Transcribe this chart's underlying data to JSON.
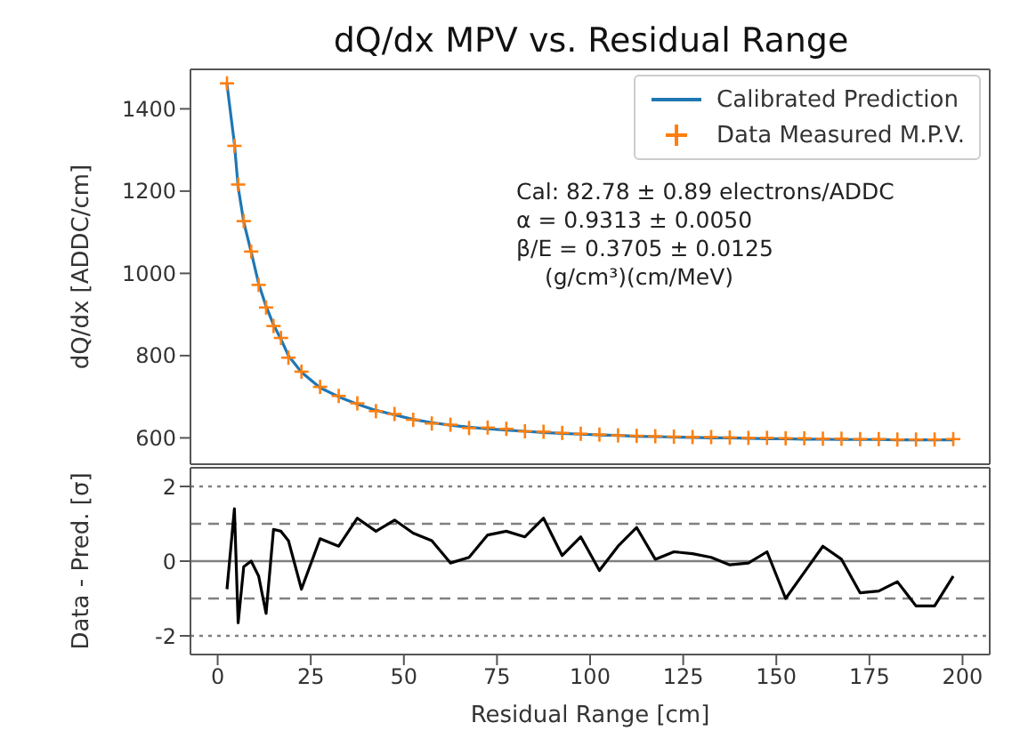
{
  "chart_data": [
    {
      "type": "line",
      "title": "dQ/dx MPV vs. Residual Range",
      "ylabel": "dQ/dx [ADDC/cm]",
      "legend": "top right",
      "tick_labels": "y",
      "grid": false,
      "annotations": [
        "Cal: 82.78 ± 0.89 electrons/ADDC",
        "α = 0.9313 ± 0.0050",
        "β/E = 0.3705 ± 0.0125",
        "(g/cm³)(cm/MeV)"
      ],
      "x": [
        2.5,
        4.5,
        5.5,
        7,
        9,
        11,
        13,
        15,
        17,
        19,
        22.5,
        27.5,
        32.5,
        37.5,
        42.5,
        47.5,
        52.5,
        57.5,
        62.5,
        67.5,
        72.5,
        77.5,
        82.5,
        87.5,
        92.5,
        97.5,
        102.5,
        107.5,
        112.5,
        117.5,
        122.5,
        127.5,
        132.5,
        137.5,
        142.5,
        147.5,
        152.5,
        157.5,
        162.5,
        167.5,
        172.5,
        177.5,
        182.5,
        187.5,
        192.5,
        197.5
      ],
      "xlim": [
        -7.3,
        207.3
      ],
      "ylim": [
        536,
        1496
      ],
      "yticks": [
        600,
        800,
        1000,
        1200,
        1400
      ],
      "series": [
        {
          "name": "Calibrated Prediction",
          "color": "#1f77b4",
          "values": [
            1460,
            1315,
            1210,
            1125,
            1052,
            975,
            920,
            875,
            840,
            800,
            760,
            722,
            700,
            682,
            667,
            656,
            645,
            637,
            631,
            626,
            622,
            619,
            616,
            613,
            611,
            609,
            607,
            606,
            604,
            603,
            602,
            601,
            600,
            600,
            599,
            598,
            598,
            597,
            597,
            596,
            596,
            596,
            595,
            595,
            595,
            595
          ]
        },
        {
          "name": "Data Measured M.P.V.",
          "type": "scatter",
          "marker": "cross",
          "color": "#ff7f0e",
          "values": [
            1462,
            1310,
            1216,
            1127,
            1053,
            972,
            917,
            872,
            843,
            795,
            761,
            724,
            702,
            684,
            665,
            658,
            644,
            635,
            632,
            624,
            625,
            622,
            616,
            615,
            612,
            610,
            608,
            606,
            605,
            604,
            603,
            602,
            602,
            601,
            600,
            600,
            599,
            599,
            598,
            598,
            597,
            597,
            596,
            596,
            596,
            597
          ]
        }
      ]
    },
    {
      "type": "line",
      "xlabel": "Residual Range [cm]",
      "ylabel": "Data - Pred. [σ]",
      "grid": false,
      "x": [
        2.5,
        4.5,
        5.5,
        7,
        9,
        11,
        13,
        15,
        17,
        19,
        22.5,
        27.5,
        32.5,
        37.5,
        42.5,
        47.5,
        52.5,
        57.5,
        62.5,
        67.5,
        72.5,
        77.5,
        82.5,
        87.5,
        92.5,
        97.5,
        102.5,
        107.5,
        112.5,
        117.5,
        122.5,
        127.5,
        132.5,
        137.5,
        142.5,
        147.5,
        152.5,
        157.5,
        162.5,
        167.5,
        172.5,
        177.5,
        182.5,
        187.5,
        192.5,
        197.5
      ],
      "xlim": [
        -7.3,
        207.3
      ],
      "xticks": [
        0,
        25,
        50,
        75,
        100,
        125,
        150,
        175,
        200
      ],
      "ylim": [
        -2.5,
        2.5
      ],
      "yticks": [
        -2,
        0,
        2
      ],
      "ref_lines": [
        {
          "axis": "y",
          "value": 0,
          "color": "#808080",
          "line_style": "solid"
        },
        {
          "axis": "y",
          "value": 1,
          "color": "#808080",
          "line_style": "dashed"
        },
        {
          "axis": "y",
          "value": -1,
          "color": "#808080",
          "line_style": "dashed"
        },
        {
          "axis": "y",
          "value": 2,
          "color": "#808080",
          "line_style": "dotted"
        },
        {
          "axis": "y",
          "value": -2,
          "color": "#808080",
          "line_style": "dotted"
        }
      ],
      "series": [
        {
          "color": "#000000",
          "values": [
            -0.75,
            1.4,
            -1.65,
            -0.15,
            0,
            -0.4,
            -1.4,
            0.85,
            0.8,
            0.55,
            -0.75,
            0.6,
            0.4,
            1.15,
            0.8,
            1.1,
            0.75,
            0.55,
            -0.05,
            0.1,
            0.7,
            0.8,
            0.65,
            1.15,
            0.15,
            0.65,
            -0.25,
            0.4,
            0.9,
            0.05,
            0.25,
            0.2,
            0.1,
            -0.1,
            -0.05,
            0.25,
            -1.0,
            -0.3,
            0.4,
            0.05,
            -0.85,
            -0.8,
            -0.55,
            -1.2,
            -1.2,
            -0.4
          ]
        }
      ]
    }
  ]
}
